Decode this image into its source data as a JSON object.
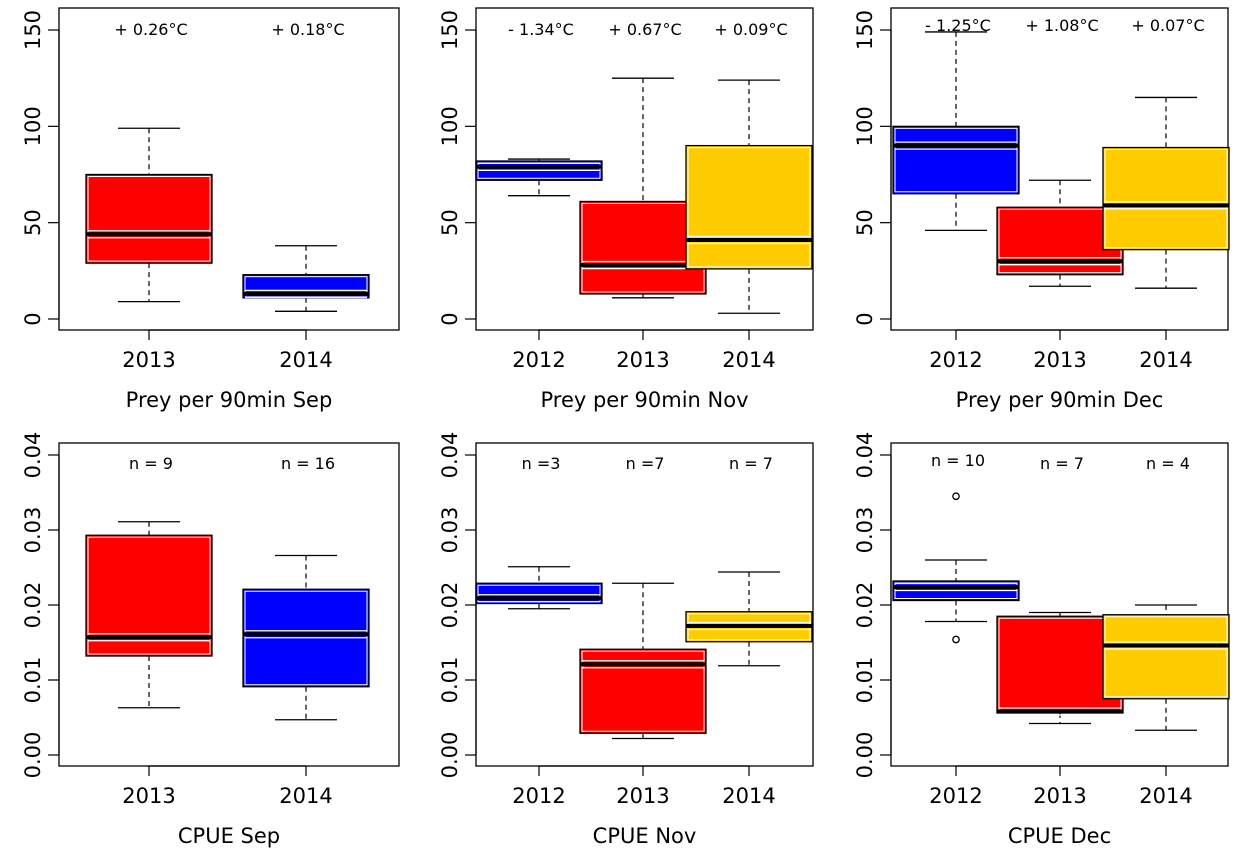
{
  "chart_data": [
    {
      "type": "boxplot",
      "xlabel": "Prey per 90min Sep",
      "ylim": [
        0,
        150
      ],
      "yticks": [
        0,
        50,
        100,
        150
      ],
      "categories": [
        "2013",
        "2014"
      ],
      "annotations": [
        "+ 0.26°C",
        "+ 0.18°C"
      ],
      "boxes": [
        {
          "label": "2013",
          "min": 9,
          "q1": 29,
          "median": 44,
          "q3": 75,
          "max": 99,
          "color": "#ff0000",
          "outliers": []
        },
        {
          "label": "2014",
          "min": 4,
          "q1": 11,
          "median": 13,
          "q3": 23,
          "max": 38,
          "color": "#0000ff",
          "outliers": []
        }
      ]
    },
    {
      "type": "boxplot",
      "xlabel": "Prey per 90min Nov",
      "ylim": [
        0,
        150
      ],
      "yticks": [
        0,
        50,
        100,
        150
      ],
      "categories": [
        "2012",
        "2013",
        "2014"
      ],
      "annotations": [
        "- 1.34°C",
        "+ 0.67°C",
        "+ 0.09°C"
      ],
      "boxes": [
        {
          "label": "2012",
          "min": 64,
          "q1": 72,
          "median": 79,
          "q3": 82,
          "max": 83,
          "color": "#0000ff",
          "outliers": []
        },
        {
          "label": "2013",
          "min": 11,
          "q1": 13,
          "median": 28,
          "q3": 61,
          "max": 125,
          "color": "#ff0000",
          "outliers": []
        },
        {
          "label": "2014",
          "min": 3,
          "q1": 26,
          "median": 41,
          "q3": 90,
          "max": 124,
          "color": "#ffcc00",
          "outliers": []
        }
      ]
    },
    {
      "type": "boxplot",
      "xlabel": "Prey per 90min Dec",
      "ylim": [
        0,
        150
      ],
      "yticks": [
        0,
        50,
        100,
        150
      ],
      "categories": [
        "2012",
        "2013",
        "2014"
      ],
      "annotations": [
        "- 1.25°C",
        "+ 1.08°C",
        "+ 0.07°C"
      ],
      "boxes": [
        {
          "label": "2012",
          "min": 46,
          "q1": 65,
          "median": 90,
          "q3": 100,
          "max": 149,
          "color": "#0000ff",
          "outliers": []
        },
        {
          "label": "2013",
          "min": 17,
          "q1": 23,
          "median": 30,
          "q3": 58,
          "max": 72,
          "color": "#ff0000",
          "outliers": []
        },
        {
          "label": "2014",
          "min": 16,
          "q1": 36,
          "median": 59,
          "q3": 89,
          "max": 115,
          "color": "#ffcc00",
          "outliers": []
        }
      ]
    },
    {
      "type": "boxplot",
      "xlabel": "CPUE Sep",
      "ylim": [
        0,
        0.04
      ],
      "yticks": [
        "0.00",
        "0.01",
        "0.02",
        "0.03",
        "0.04"
      ],
      "categories": [
        "2013",
        "2014"
      ],
      "annotations": [
        "n = 9",
        "n = 16"
      ],
      "boxes": [
        {
          "label": "2013",
          "min": 0.0063,
          "q1": 0.0132,
          "median": 0.0157,
          "q3": 0.0293,
          "max": 0.0311,
          "color": "#ff0000",
          "outliers": []
        },
        {
          "label": "2014",
          "min": 0.0047,
          "q1": 0.0091,
          "median": 0.0161,
          "q3": 0.0221,
          "max": 0.0266,
          "color": "#0000ff",
          "outliers": []
        }
      ]
    },
    {
      "type": "boxplot",
      "xlabel": "CPUE Nov",
      "ylim": [
        0,
        0.04
      ],
      "yticks": [
        "0.00",
        "0.01",
        "0.02",
        "0.03",
        "0.04"
      ],
      "categories": [
        "2012",
        "2013",
        "2014"
      ],
      "annotations": [
        "n =3",
        "n =7",
        "n = 7"
      ],
      "boxes": [
        {
          "label": "2012",
          "min": 0.0195,
          "q1": 0.0202,
          "median": 0.0209,
          "q3": 0.0229,
          "max": 0.0251,
          "color": "#0000ff",
          "outliers": []
        },
        {
          "label": "2013",
          "min": 0.0022,
          "q1": 0.0029,
          "median": 0.0121,
          "q3": 0.0141,
          "max": 0.0229,
          "color": "#ff0000",
          "outliers": []
        },
        {
          "label": "2014",
          "min": 0.0119,
          "q1": 0.0151,
          "median": 0.0172,
          "q3": 0.0191,
          "max": 0.0244,
          "color": "#ffcc00",
          "outliers": []
        }
      ]
    },
    {
      "type": "boxplot",
      "xlabel": "CPUE Dec",
      "ylim": [
        0,
        0.04
      ],
      "yticks": [
        "0.00",
        "0.01",
        "0.02",
        "0.03",
        "0.04"
      ],
      "categories": [
        "2012",
        "2013",
        "2014"
      ],
      "annotations": [
        "n = 10",
        "n = 7",
        "n = 4"
      ],
      "boxes": [
        {
          "label": "2012",
          "min": 0.0178,
          "q1": 0.0206,
          "median": 0.0224,
          "q3": 0.0232,
          "max": 0.026,
          "color": "#0000ff",
          "outliers": [
            0.0345,
            0.0154
          ]
        },
        {
          "label": "2013",
          "min": 0.0042,
          "q1": 0.0056,
          "median": 0.0058,
          "q3": 0.0185,
          "max": 0.019,
          "color": "#ff0000",
          "outliers": []
        },
        {
          "label": "2014",
          "min": 0.0033,
          "q1": 0.0075,
          "median": 0.0146,
          "q3": 0.0187,
          "max": 0.02,
          "color": "#ffcc00",
          "outliers": []
        }
      ]
    }
  ]
}
